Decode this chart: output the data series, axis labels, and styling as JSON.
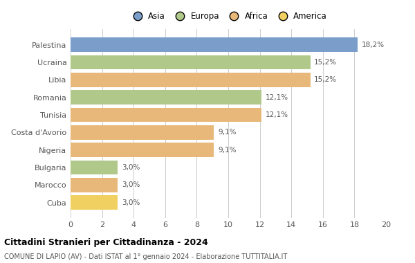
{
  "countries": [
    "Palestina",
    "Ucraina",
    "Libia",
    "Romania",
    "Tunisia",
    "Costa d'Avorio",
    "Nigeria",
    "Bulgaria",
    "Marocco",
    "Cuba"
  ],
  "values": [
    18.2,
    15.2,
    15.2,
    12.1,
    12.1,
    9.1,
    9.1,
    3.0,
    3.0,
    3.0
  ],
  "labels": [
    "18,2%",
    "15,2%",
    "15,2%",
    "12,1%",
    "12,1%",
    "9,1%",
    "9,1%",
    "3,0%",
    "3,0%",
    "3,0%"
  ],
  "continents": [
    "Asia",
    "Europa",
    "Africa",
    "Europa",
    "Africa",
    "Africa",
    "Africa",
    "Europa",
    "Africa",
    "America"
  ],
  "continent_colors": {
    "Asia": "#7a9ec9",
    "Europa": "#b0c98a",
    "Africa": "#e8b87a",
    "America": "#f0d060"
  },
  "bar_colors": [
    "#7a9ec9",
    "#b0c98a",
    "#e8b87a",
    "#b0c98a",
    "#e8b87a",
    "#e8b87a",
    "#e8b87a",
    "#b0c98a",
    "#e8b87a",
    "#f0d060"
  ],
  "title": "Cittadini Stranieri per Cittadinanza - 2024",
  "subtitle": "COMUNE DI LAPIO (AV) - Dati ISTAT al 1° gennaio 2024 - Elaborazione TUTTITALIA.IT",
  "xlim": [
    0,
    20
  ],
  "xticks": [
    0,
    2,
    4,
    6,
    8,
    10,
    12,
    14,
    16,
    18,
    20
  ],
  "legend_order": [
    "Asia",
    "Europa",
    "Africa",
    "America"
  ],
  "background_color": "#ffffff",
  "grid_color": "#cccccc"
}
